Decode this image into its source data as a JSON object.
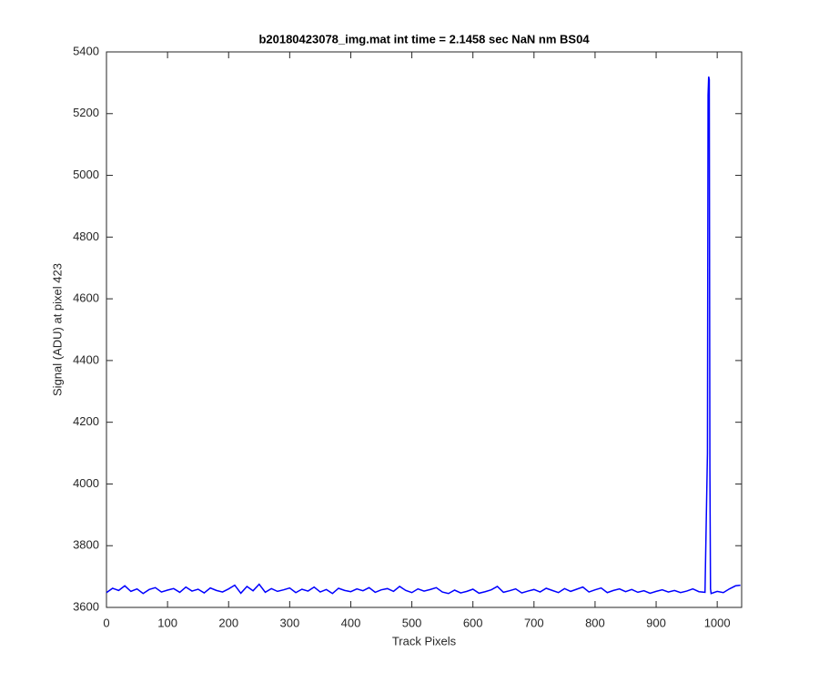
{
  "chart_data": {
    "type": "line",
    "title": "b20180423078_img.mat int time = 2.1458 sec  NaN nm BS04",
    "x_label": "Track Pixels",
    "y_label": "Signal (ADU) at pixel 423",
    "xlim": [
      0,
      1040
    ],
    "ylim": [
      3600,
      5400
    ],
    "xticks": [
      0,
      100,
      200,
      300,
      400,
      500,
      600,
      700,
      800,
      900,
      1000
    ],
    "yticks": [
      3600,
      3800,
      4000,
      4200,
      4400,
      4600,
      4800,
      5000,
      5200,
      5400
    ],
    "grid": false,
    "series": [
      {
        "color": "#0000ff",
        "x": [
          0,
          10,
          20,
          30,
          40,
          50,
          60,
          70,
          80,
          90,
          100,
          110,
          120,
          130,
          140,
          150,
          160,
          170,
          180,
          190,
          200,
          210,
          220,
          230,
          240,
          250,
          260,
          270,
          280,
          290,
          300,
          310,
          320,
          330,
          340,
          350,
          360,
          370,
          380,
          390,
          400,
          410,
          420,
          430,
          440,
          450,
          460,
          470,
          480,
          490,
          500,
          510,
          520,
          530,
          540,
          550,
          560,
          570,
          580,
          590,
          600,
          610,
          620,
          630,
          640,
          650,
          660,
          670,
          680,
          690,
          700,
          710,
          720,
          730,
          740,
          750,
          760,
          770,
          780,
          790,
          800,
          810,
          820,
          830,
          840,
          850,
          860,
          870,
          880,
          890,
          900,
          910,
          920,
          930,
          940,
          950,
          960,
          970,
          980,
          984,
          985,
          986,
          987,
          988,
          989,
          990,
          1000,
          1010,
          1020,
          1030,
          1038
        ],
        "values": [
          3648,
          3662,
          3655,
          3670,
          3652,
          3660,
          3645,
          3658,
          3664,
          3650,
          3656,
          3661,
          3649,
          3666,
          3653,
          3659,
          3647,
          3663,
          3655,
          3650,
          3660,
          3672,
          3646,
          3668,
          3654,
          3675,
          3649,
          3661,
          3652,
          3657,
          3663,
          3648,
          3659,
          3653,
          3666,
          3650,
          3658,
          3645,
          3662,
          3655,
          3651,
          3660,
          3654,
          3664,
          3649,
          3657,
          3661,
          3652,
          3668,
          3655,
          3648,
          3660,
          3653,
          3658,
          3664,
          3650,
          3645,
          3656,
          3647,
          3652,
          3659,
          3646,
          3651,
          3657,
          3668,
          3649,
          3654,
          3660,
          3647,
          3653,
          3658,
          3650,
          3662,
          3655,
          3648,
          3661,
          3652,
          3659,
          3666,
          3650,
          3657,
          3663,
          3648,
          3655,
          3660,
          3651,
          3658,
          3649,
          3654,
          3646,
          3652,
          3657,
          3650,
          3655,
          3648,
          3653,
          3660,
          3651,
          3649,
          4100,
          5260,
          5320,
          5310,
          4050,
          3660,
          3645,
          3652,
          3648,
          3660,
          3670,
          3672
        ]
      }
    ]
  }
}
